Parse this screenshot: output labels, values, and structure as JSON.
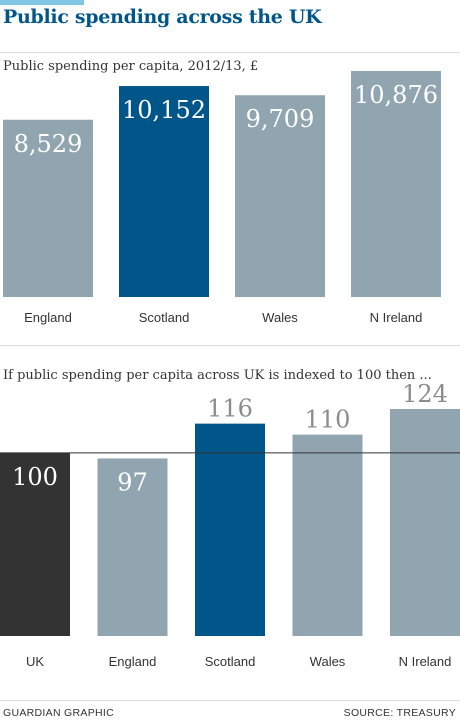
{
  "title": "Public spending across the UK",
  "footer": {
    "left": "GUARDIAN GRAPHIC",
    "right": "SOURCE: TREASURY"
  },
  "colors": {
    "grey_bar": "#91a5b1",
    "highlight_bar": "#005689",
    "uk_bar": "#333333",
    "title": "#005689",
    "accent": "#7fc6e2"
  },
  "chart_data": [
    {
      "type": "bar",
      "title": "Public spending per capita, 2012/13, £",
      "categories": [
        "England",
        "Scotland",
        "Wales",
        "N Ireland"
      ],
      "values": [
        8529,
        10152,
        9709,
        10876
      ],
      "labels": [
        "8,529",
        "10,152",
        "9,709",
        "10,876"
      ],
      "highlight": "Scotland",
      "ylim": [
        0,
        12000
      ],
      "grid": false
    },
    {
      "type": "bar",
      "title": "If public spending per capita across UK is indexed to 100 then ...",
      "categories": [
        "UK",
        "England",
        "Scotland",
        "Wales",
        "N Ireland"
      ],
      "values": [
        100,
        97,
        116,
        110,
        124
      ],
      "labels": [
        "100",
        "97",
        "116",
        "110",
        "124"
      ],
      "highlight": "Scotland",
      "reference_line": 100,
      "ylim": [
        0,
        125
      ],
      "grid": false
    }
  ]
}
